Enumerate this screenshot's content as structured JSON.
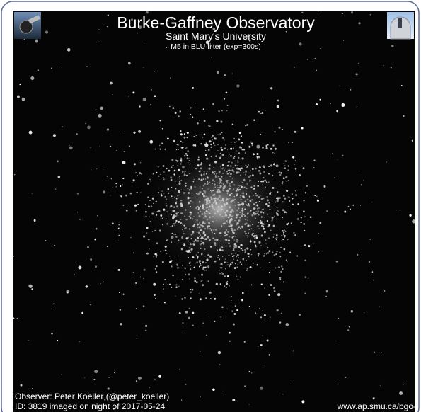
{
  "header": {
    "title": "Burke-Gaffney Observatory",
    "subtitle": "Saint Mary's University",
    "caption": "M5 in BLU filter (exp=300s)"
  },
  "footer": {
    "observer": "Observer: Peter Koeller (@peter_koeller)",
    "id_line": "ID: 3819 imaged on night of 2017-05-24",
    "url": "www.ap.smu.ca/bgo"
  }
}
